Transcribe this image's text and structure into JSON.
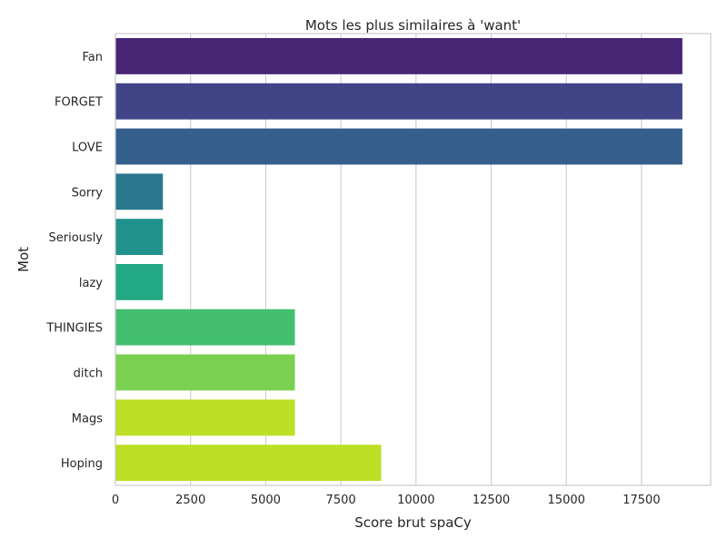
{
  "chart_data": {
    "type": "bar",
    "orientation": "horizontal",
    "title": "Mots les plus similaires à 'want'",
    "xlabel": "Score brut spaCy",
    "ylabel": "Mot",
    "categories": [
      "Fan",
      "FORGET",
      "LOVE",
      "Sorry",
      "Seriously",
      "lazy",
      "THINGIES",
      "ditch",
      "Mags",
      "Hoping"
    ],
    "values": [
      18860,
      18860,
      18860,
      1580,
      1580,
      1580,
      5970,
      5970,
      5970,
      8840
    ],
    "colors": [
      "#482475",
      "#414487",
      "#355f8d",
      "#2a788e",
      "#21918c",
      "#22a884",
      "#44bf70",
      "#7ad151",
      "#bddf26",
      "#bddf26"
    ],
    "xlim": [
      0,
      19800
    ],
    "xticks": [
      0,
      2500,
      5000,
      7500,
      10000,
      12500,
      15000,
      17500
    ],
    "xtick_labels": [
      "0",
      "2500",
      "5000",
      "7500",
      "10000",
      "12500",
      "15000",
      "17500"
    ],
    "grid": "vertical",
    "legend": "none"
  }
}
